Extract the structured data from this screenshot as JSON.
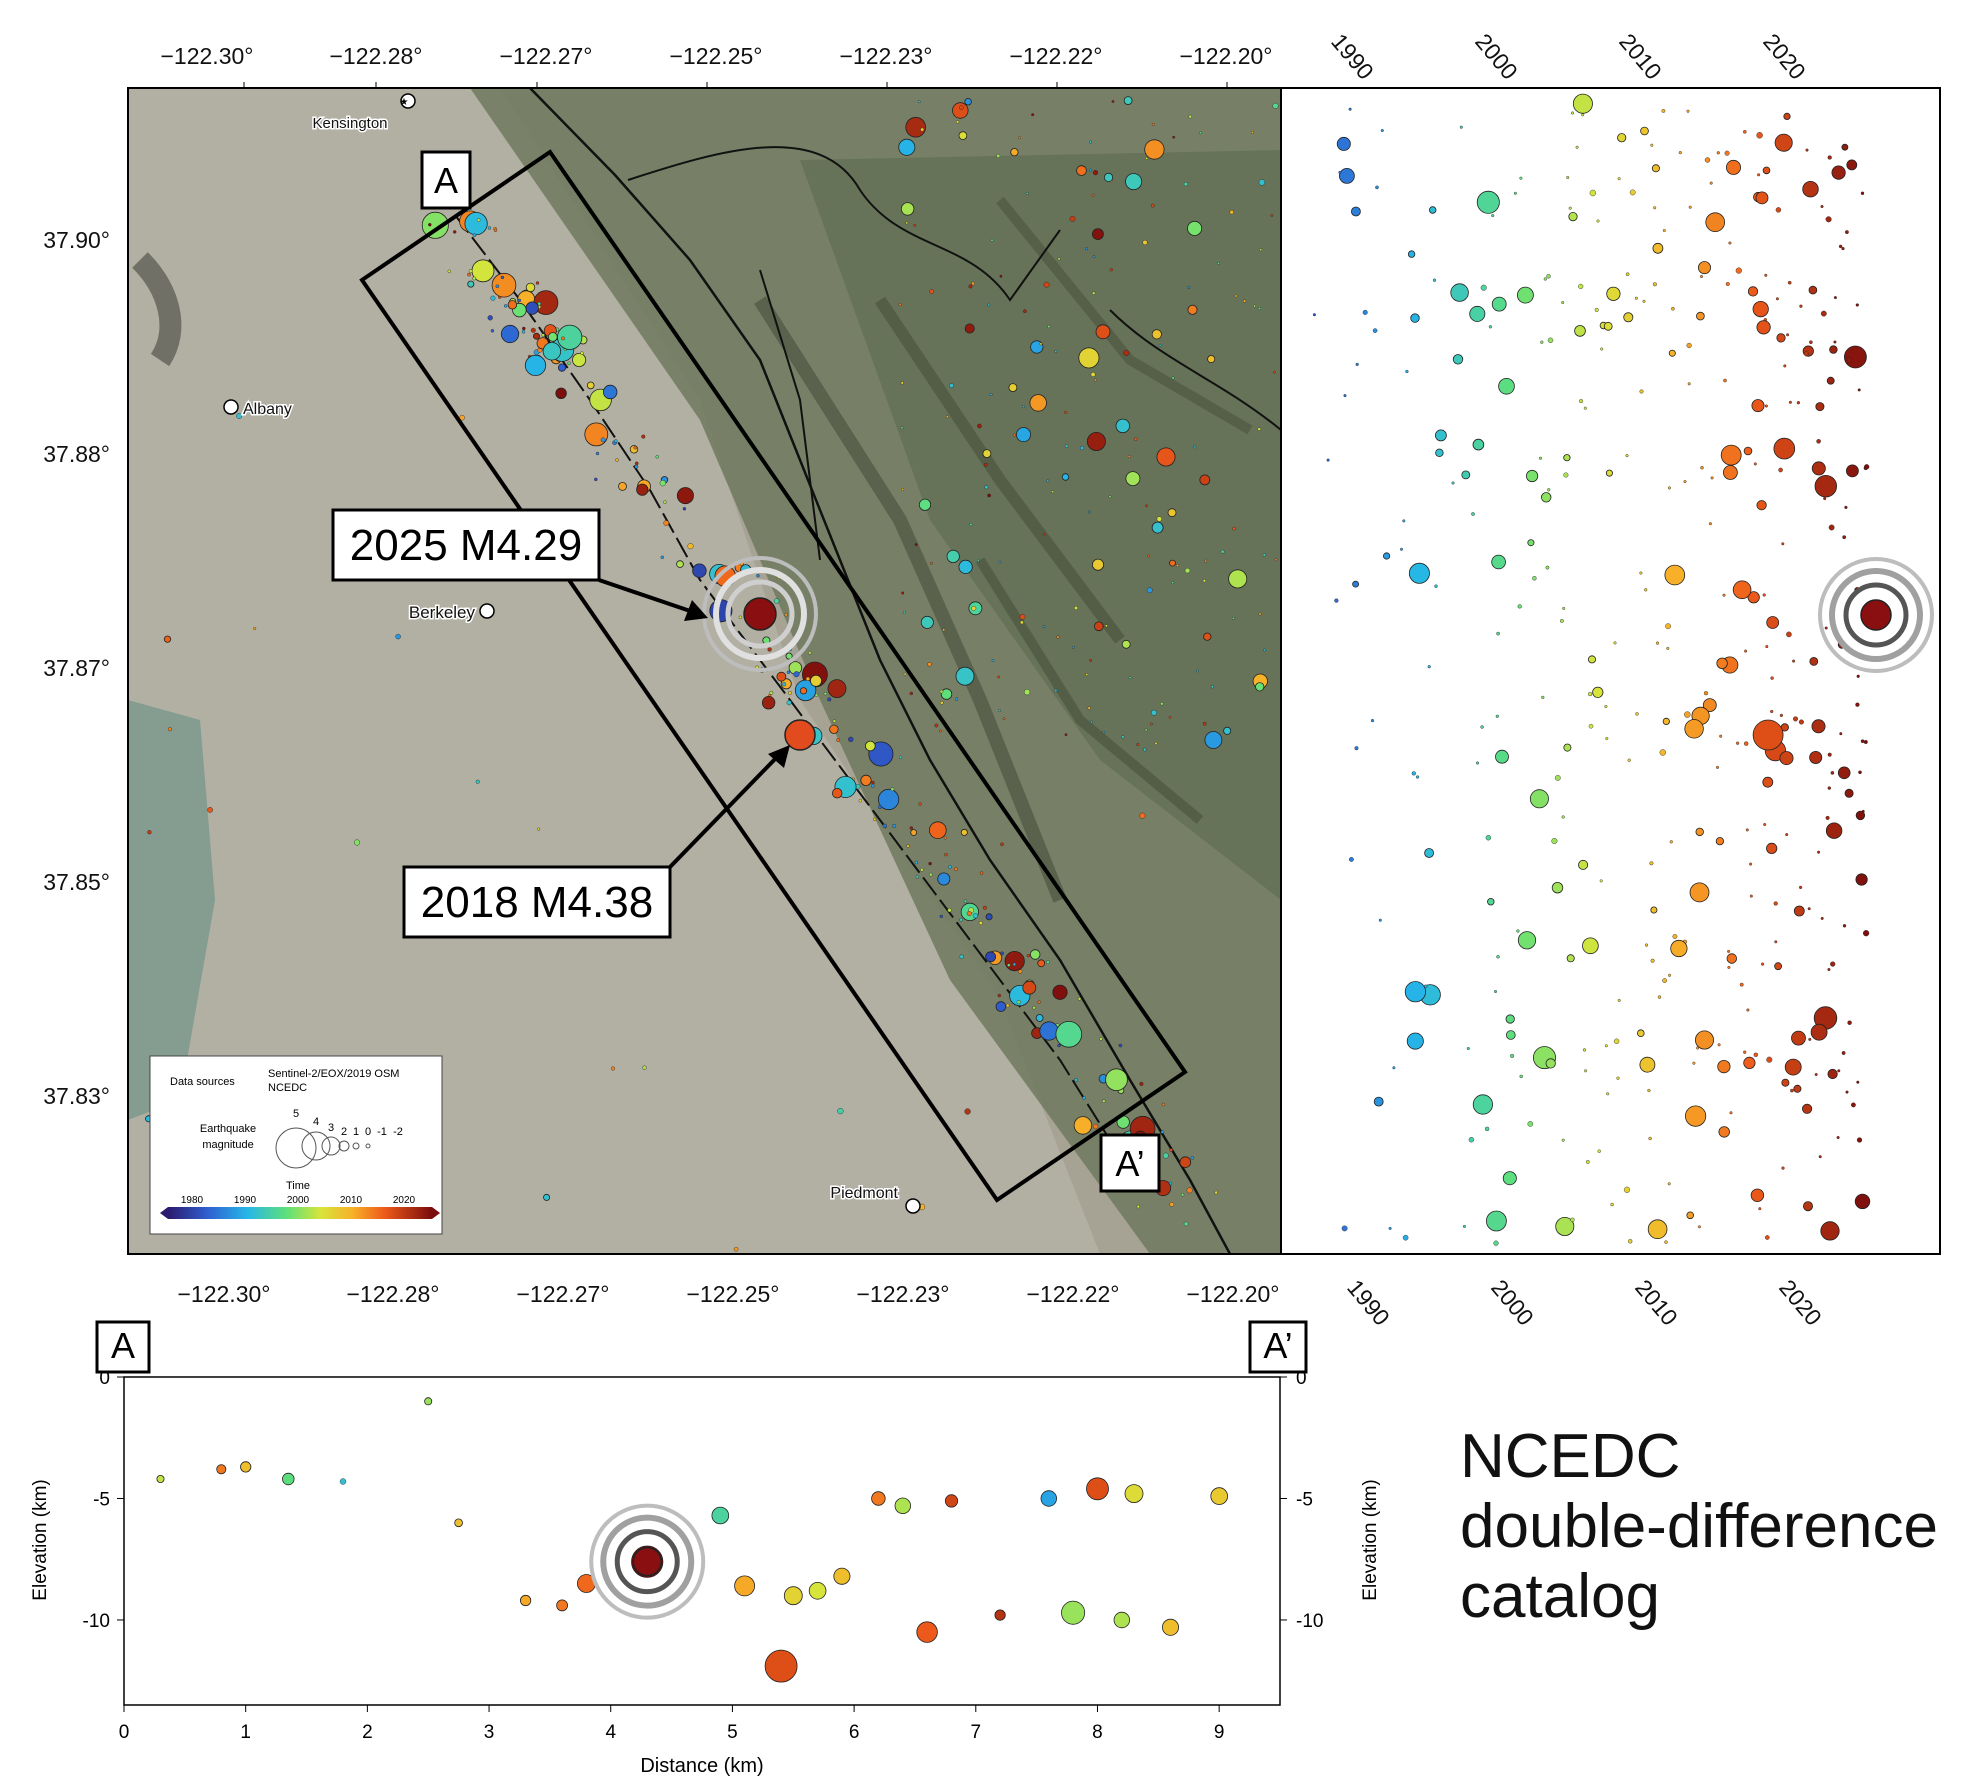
{
  "title_lines": [
    "NCEDC",
    "double-difference",
    "catalog"
  ],
  "map": {
    "lon_ticks": [
      "−122.30°",
      "−122.28°",
      "−122.27°",
      "−122.25°",
      "−122.23°",
      "−122.22°",
      "−122.20°"
    ],
    "lat_ticks": [
      "37.90°",
      "37.88°",
      "37.87°",
      "37.85°",
      "37.83°"
    ],
    "places": [
      {
        "name": "Kensington"
      },
      {
        "name": "Albany"
      },
      {
        "name": "Berkeley"
      },
      {
        "name": "Piedmont"
      }
    ],
    "profile_start_label": "A",
    "profile_end_label": "A’",
    "callouts": [
      {
        "text": "2025 M4.29"
      },
      {
        "text": "2018 M4.38"
      }
    ],
    "legend": {
      "data_sources_label": "Data sources",
      "data_sources": [
        "Sentinel-2/EOX/2019 OSM",
        "NCEDC"
      ],
      "magnitude_label": [
        "Earthquake",
        "magnitude"
      ],
      "magnitudes": [
        "5",
        "4",
        "3",
        "2",
        "1",
        "0",
        "-1",
        "-2"
      ],
      "time_label": "Time",
      "time_ticks": [
        "1980",
        "1990",
        "2000",
        "2010",
        "2020"
      ]
    }
  },
  "time_panel": {
    "year_ticks": [
      "1990",
      "2000",
      "2010",
      "2020"
    ]
  },
  "cross_section": {
    "start_label": "A",
    "end_label": "A’",
    "xlabel": "Distance (km)",
    "ylabel": "Elevation (km)",
    "x_ticks": [
      "0",
      "1",
      "2",
      "3",
      "4",
      "5",
      "6",
      "7",
      "8",
      "9"
    ],
    "y_ticks": [
      "0",
      "-5",
      "-10"
    ],
    "xlim": [
      0,
      9.5
    ],
    "ylim": [
      -13.5,
      0
    ]
  },
  "chart_data": {
    "type": "scatter",
    "colormap": "time (1980–2025), blue → green → yellow → orange → dark red",
    "highlighted_events": [
      {
        "label": "2025 M4.29",
        "year": 2025,
        "magnitude": 4.29,
        "lon": -122.248,
        "lat": 37.873,
        "distance_km": 4.3,
        "elevation_km": -7.6
      },
      {
        "label": "2018 M4.38",
        "year": 2018,
        "magnitude": 4.38,
        "lon": -122.244,
        "lat": 37.866,
        "distance_km": 5.4,
        "elevation_km": -11.9
      }
    ],
    "cross_section_points": {
      "distance_km": [
        0.3,
        0.8,
        1.0,
        1.35,
        1.8,
        2.5,
        2.75,
        3.3,
        3.6,
        3.8,
        4.3,
        4.9,
        5.1,
        5.4,
        5.5,
        5.7,
        5.9,
        6.2,
        6.4,
        6.6,
        6.8,
        7.2,
        7.6,
        8.0,
        8.3,
        7.8,
        8.2,
        8.6,
        9.0
      ],
      "elevation_km": [
        -4.2,
        -3.8,
        -3.7,
        -4.2,
        -4.3,
        -1.0,
        -6.0,
        -9.2,
        -9.4,
        -8.5,
        -7.6,
        -5.7,
        -8.6,
        -11.9,
        -9.0,
        -8.8,
        -8.2,
        -5.0,
        -5.3,
        -10.5,
        -5.1,
        -9.8,
        -5.0,
        -4.6,
        -4.8,
        -9.7,
        -10.0,
        -10.3,
        -4.9
      ],
      "year": [
        2005,
        2015,
        2010,
        2000,
        1995,
        2003,
        2010,
        2012,
        2015,
        2016,
        2025,
        1998,
        2012,
        2018,
        2008,
        2006,
        2010,
        2015,
        2004,
        2017,
        2019,
        2021,
        1992,
        2018,
        2007,
        2003,
        2004,
        2010,
        2009
      ],
      "magnitude": [
        0.5,
        0.8,
        1.0,
        1.2,
        0.3,
        0.5,
        0.6,
        1.0,
        1.1,
        2.2,
        4.29,
        2.0,
        2.5,
        4.38,
        2.2,
        2.0,
        1.9,
        1.5,
        1.8,
        2.6,
        1.3,
        1.0,
        1.8,
        2.8,
        2.2,
        3.0,
        1.8,
        1.9,
        2.0
      ]
    }
  }
}
